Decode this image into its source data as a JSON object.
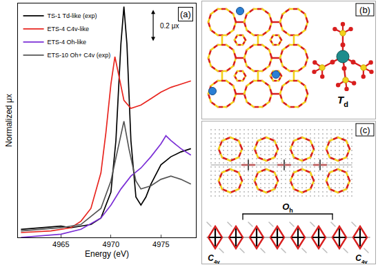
{
  "chart_data": {
    "type": "line",
    "panel_label": "(a)",
    "x_label": "Energy (eV)",
    "y_label": "Normalized μx",
    "xlim": [
      4960.7,
      4978.5
    ],
    "xticks": [
      4965,
      4970,
      4975
    ],
    "ylim": [
      0,
      1.45
    ],
    "tick_labels": "x",
    "grid": false,
    "legend": "upper left",
    "scale_bar": {
      "label": "0.2 μx",
      "value": 0.2
    },
    "series": [
      {
        "name": "TS-1 Td-like (exp)",
        "color": "#000000",
        "x": [
          4961,
          4963,
          4965,
          4966,
          4967,
          4968,
          4969,
          4970,
          4970.5,
          4971,
          4971.3,
          4971.6,
          4972,
          4972.5,
          4973,
          4973.5,
          4974,
          4975,
          4976,
          4977,
          4978
        ],
        "values": [
          0.05,
          0.06,
          0.07,
          0.06,
          0.07,
          0.08,
          0.12,
          0.28,
          0.6,
          1.2,
          1.43,
          1.2,
          0.6,
          0.25,
          0.2,
          0.25,
          0.33,
          0.45,
          0.5,
          0.53,
          0.55
        ]
      },
      {
        "name": "ETS-4 C4v-like",
        "color": "#e8251f",
        "x": [
          4961,
          4964,
          4966,
          4967,
          4968,
          4969,
          4969.5,
          4970,
          4970.4,
          4970.8,
          4971.3,
          4972,
          4973,
          4974,
          4975,
          4976,
          4977,
          4978
        ],
        "values": [
          0.03,
          0.04,
          0.06,
          0.1,
          0.18,
          0.4,
          0.65,
          0.95,
          1.12,
          1.0,
          0.85,
          0.8,
          0.82,
          0.86,
          0.9,
          0.93,
          0.95,
          0.97
        ]
      },
      {
        "name": "ETS-4 Oh-like",
        "color": "#7b2fd6",
        "x": [
          4961,
          4965,
          4967,
          4969,
          4970,
          4971,
          4972,
          4973,
          4974,
          4975,
          4975.5,
          4976,
          4977,
          4978
        ],
        "values": [
          0.0,
          0.02,
          0.05,
          0.12,
          0.2,
          0.3,
          0.38,
          0.43,
          0.5,
          0.58,
          0.63,
          0.6,
          0.55,
          0.51
        ]
      },
      {
        "name": "ETS-10 Oh+ C4v (exp)",
        "color": "#555555",
        "x": [
          4961,
          4965,
          4967,
          4969,
          4970,
          4970.7,
          4971.3,
          4971.8,
          4972.5,
          4973,
          4974,
          4975,
          4976,
          4977,
          4978
        ],
        "values": [
          0.04,
          0.06,
          0.08,
          0.18,
          0.35,
          0.55,
          0.72,
          0.55,
          0.35,
          0.3,
          0.32,
          0.36,
          0.38,
          0.36,
          0.33
        ]
      }
    ]
  },
  "panel_b": {
    "label": "(b)",
    "site": {
      "symbol": "T",
      "subscript": "d"
    }
  },
  "panel_c": {
    "label": "(c)",
    "center": {
      "symbol": "O",
      "subscript": "h"
    },
    "ends": {
      "symbol": "C",
      "subscript": "4v"
    }
  }
}
